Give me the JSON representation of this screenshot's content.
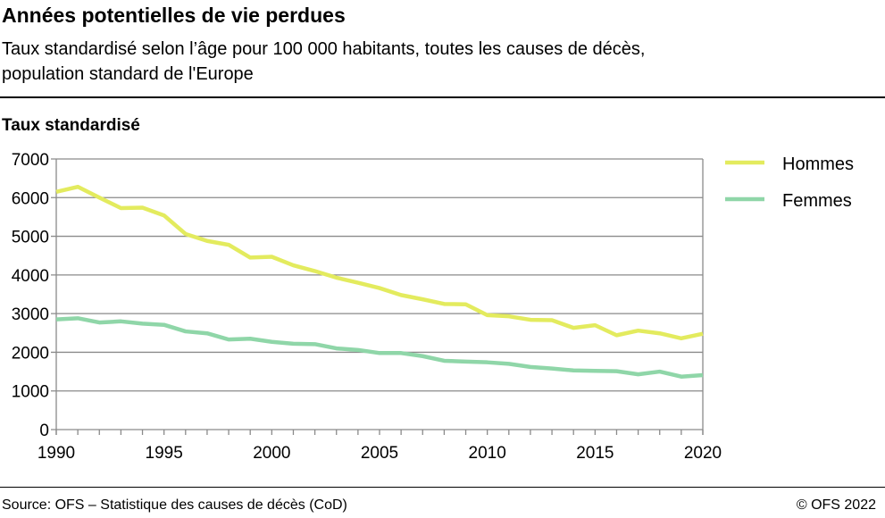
{
  "header": {
    "title": "Années potentielles de vie perdues",
    "subtitle_line1": "Taux standardisé selon l’âge pour 100 000 habitants, toutes les causes de décès,",
    "subtitle_line2": "population standard de l'Europe"
  },
  "footer": {
    "source": "Source: OFS – Statistique des causes de décès (CoD)",
    "copyright": "© OFS 2022"
  },
  "chart_data": {
    "type": "line",
    "ylabel": "Taux standardisé",
    "xlim": [
      1990,
      2020
    ],
    "ylim": [
      0,
      7000
    ],
    "yticks": [
      0,
      1000,
      2000,
      3000,
      4000,
      5000,
      6000,
      7000
    ],
    "xticks_labeled": [
      1990,
      1995,
      2000,
      2005,
      2010,
      2015,
      2020
    ],
    "grid": "horizontal",
    "legend": "right",
    "x": [
      1990,
      1991,
      1992,
      1993,
      1994,
      1995,
      1996,
      1997,
      1998,
      1999,
      2000,
      2001,
      2002,
      2003,
      2004,
      2005,
      2006,
      2007,
      2008,
      2009,
      2010,
      2011,
      2012,
      2013,
      2014,
      2015,
      2016,
      2017,
      2018,
      2019,
      2020
    ],
    "series": [
      {
        "name": "Hommes",
        "color": "#e3eb5e",
        "values": [
          6150,
          6280,
          6000,
          5730,
          5740,
          5540,
          5060,
          4880,
          4780,
          4450,
          4470,
          4250,
          4100,
          3930,
          3800,
          3660,
          3480,
          3370,
          3250,
          3240,
          2960,
          2930,
          2840,
          2830,
          2630,
          2700,
          2440,
          2560,
          2490,
          2360,
          2480
        ]
      },
      {
        "name": "Femmes",
        "color": "#8fd6a8",
        "values": [
          2850,
          2880,
          2770,
          2800,
          2740,
          2710,
          2540,
          2490,
          2330,
          2350,
          2270,
          2220,
          2210,
          2100,
          2060,
          1980,
          1980,
          1900,
          1780,
          1760,
          1740,
          1700,
          1620,
          1580,
          1530,
          1520,
          1510,
          1430,
          1500,
          1370,
          1410
        ]
      }
    ]
  }
}
